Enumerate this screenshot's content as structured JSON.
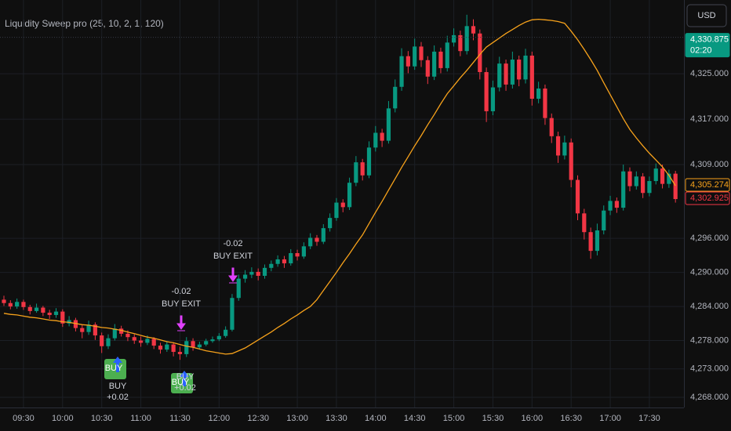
{
  "chart_data": {
    "type": "candlestick",
    "title": "Liquidity Sweep pro (25, 10, 2, 1, 120)",
    "currency": "USD",
    "up_color": "#089981",
    "down_color": "#f23645",
    "grid": true,
    "ylim": [
      4266.2,
      4338
    ],
    "yticks": [
      {
        "value": 4268,
        "label": "4,268.000"
      },
      {
        "value": 4273,
        "label": "4,273.000"
      },
      {
        "value": 4278,
        "label": "4,278.000"
      },
      {
        "value": 4284,
        "label": "4,284.000"
      },
      {
        "value": 4290,
        "label": "4,290.000"
      },
      {
        "value": 4296,
        "label": "4,296.000"
      },
      {
        "value": 4309,
        "label": "4,309.000"
      },
      {
        "value": 4317,
        "label": "4,317.000"
      },
      {
        "value": 4325,
        "label": "4,325.000"
      }
    ],
    "categories": [
      null,
      null,
      null,
      "09:30",
      null,
      null,
      null,
      null,
      null,
      "10:00",
      null,
      null,
      null,
      null,
      null,
      "10:30",
      null,
      null,
      null,
      null,
      null,
      "11:00",
      null,
      null,
      null,
      null,
      null,
      "11:30",
      null,
      null,
      null,
      null,
      null,
      "12:00",
      null,
      null,
      null,
      null,
      null,
      "12:30",
      null,
      null,
      null,
      null,
      null,
      "13:00",
      null,
      null,
      null,
      null,
      null,
      "13:30",
      null,
      null,
      null,
      null,
      null,
      "14:00",
      null,
      null,
      null,
      null,
      null,
      "14:30",
      null,
      null,
      null,
      null,
      null,
      "15:00",
      null,
      null,
      null,
      null,
      null,
      "15:30",
      null,
      null,
      null,
      null,
      null,
      "16:00",
      null,
      null,
      null,
      null,
      null,
      "16:30",
      null,
      null,
      null,
      null,
      null,
      "17:00",
      null,
      null,
      null,
      null,
      null,
      "17:30",
      null,
      null,
      null,
      null
    ],
    "open": [
      4285.2,
      4284.6,
      4284.0,
      4284.8,
      4283.9,
      4283.2,
      4283.8,
      4282.9,
      4282.5,
      4283.1,
      4281.0,
      4281.6,
      4280.2,
      4279.5,
      4280.8,
      4278.9,
      4277.0,
      4278.4,
      4280.1,
      4279.2,
      4278.6,
      4278.0,
      4277.6,
      4278.3,
      4277.1,
      4276.4,
      4277.3,
      4276.0,
      4275.6,
      4277.9,
      4276.8,
      4277.3,
      4277.9,
      4278.2,
      4278.8,
      4279.9,
      4285.5,
      4288.9,
      4289.6,
      4290.1,
      4289.4,
      4290.8,
      4291.5,
      4292.3,
      4291.6,
      4293.4,
      4292.8,
      4294.6,
      4296.1,
      4295.4,
      4297.8,
      4299.6,
      4302.3,
      4301.5,
      4305.8,
      4309.4,
      4307.1,
      4312.0,
      4314.6,
      4313.2,
      4318.9,
      4322.7,
      4328.1,
      4326.3,
      4329.8,
      4327.4,
      4324.5,
      4328.9,
      4326.0,
      4330.5,
      4331.8,
      4329.0,
      4333.4,
      4332.1,
      4325.3,
      4318.4,
      4322.6,
      4326.8,
      4323.1,
      4327.5,
      4324.0,
      4328.2,
      4320.6,
      4322.4,
      4317.2,
      4314.0,
      4310.6,
      4312.9,
      4306.3,
      4300.4,
      4297.1,
      4293.8,
      4297.4,
      4300.9,
      4302.6,
      4301.4,
      4307.8,
      4305.2,
      4306.9,
      4304.0,
      4306.1,
      4308.3,
      4305.6,
      4307.4
    ],
    "high": [
      4285.9,
      4285.1,
      4285.4,
      4285.2,
      4284.3,
      4284.5,
      4284.1,
      4283.4,
      4283.7,
      4283.5,
      4282.3,
      4282.0,
      4280.8,
      4281.5,
      4281.2,
      4279.4,
      4279.1,
      4280.9,
      4280.6,
      4279.8,
      4279.1,
      4278.7,
      4278.9,
      4278.6,
      4277.6,
      4277.9,
      4277.7,
      4276.9,
      4278.6,
      4278.4,
      4277.8,
      4278.3,
      4278.7,
      4279.3,
      4280.5,
      4286.2,
      4289.6,
      4290.4,
      4290.9,
      4290.7,
      4291.4,
      4292.1,
      4293.0,
      4292.9,
      4294.1,
      4294.0,
      4295.3,
      4296.9,
      4296.6,
      4298.5,
      4300.4,
      4303.1,
      4302.9,
      4306.7,
      4310.5,
      4310.0,
      4313.1,
      4315.8,
      4315.3,
      4320.2,
      4324.0,
      4329.5,
      4329.0,
      4331.2,
      4330.6,
      4328.1,
      4330.0,
      4329.6,
      4331.7,
      4333.0,
      4332.6,
      4335.4,
      4334.6,
      4332.8,
      4326.1,
      4323.8,
      4328.0,
      4327.5,
      4328.9,
      4328.2,
      4329.4,
      4328.9,
      4323.6,
      4323.1,
      4318.0,
      4314.8,
      4314.1,
      4313.6,
      4307.1,
      4301.2,
      4297.9,
      4298.6,
      4301.8,
      4303.5,
      4303.2,
      4309.0,
      4308.5,
      4307.8,
      4307.5,
      4306.9,
      4309.2,
      4309.0,
      4308.1,
      4307.9
    ],
    "low": [
      4284.1,
      4283.5,
      4283.6,
      4283.4,
      4282.6,
      4282.9,
      4282.3,
      4281.8,
      4282.0,
      4280.4,
      4280.5,
      4279.6,
      4278.4,
      4279.0,
      4278.1,
      4275.8,
      4276.5,
      4278.0,
      4278.7,
      4277.9,
      4277.4,
      4276.9,
      4277.2,
      4276.5,
      4275.7,
      4276.0,
      4275.2,
      4274.6,
      4275.1,
      4276.2,
      4276.4,
      4277.0,
      4277.6,
      4277.9,
      4278.5,
      4279.6,
      4285.0,
      4288.2,
      4289.0,
      4288.6,
      4288.9,
      4290.2,
      4291.0,
      4290.8,
      4291.2,
      4292.1,
      4292.4,
      4294.1,
      4294.7,
      4295.0,
      4297.2,
      4299.1,
      4300.6,
      4301.0,
      4305.2,
      4306.2,
      4306.6,
      4311.3,
      4312.1,
      4312.7,
      4318.2,
      4322.0,
      4325.1,
      4325.7,
      4326.2,
      4323.2,
      4323.9,
      4325.1,
      4325.4,
      4329.8,
      4328.1,
      4328.4,
      4330.9,
      4324.0,
      4316.5,
      4317.7,
      4321.9,
      4322.0,
      4322.4,
      4322.8,
      4323.3,
      4319.4,
      4319.8,
      4316.0,
      4312.8,
      4309.3,
      4309.9,
      4305.0,
      4299.2,
      4295.8,
      4292.4,
      4293.0,
      4296.7,
      4300.1,
      4300.5,
      4300.9,
      4304.3,
      4304.6,
      4303.1,
      4303.4,
      4305.5,
      4304.8,
      4304.9,
      4302.3
    ],
    "close": [
      4284.6,
      4284.0,
      4284.8,
      4283.9,
      4283.2,
      4283.8,
      4282.9,
      4282.5,
      4283.1,
      4281.0,
      4281.6,
      4280.2,
      4279.5,
      4280.8,
      4278.9,
      4277.0,
      4278.4,
      4280.1,
      4279.2,
      4278.6,
      4278.0,
      4277.6,
      4278.3,
      4277.1,
      4276.4,
      4277.3,
      4276.0,
      4275.6,
      4277.9,
      4276.8,
      4277.3,
      4277.9,
      4278.2,
      4278.8,
      4279.9,
      4285.5,
      4288.9,
      4289.6,
      4290.1,
      4289.4,
      4290.8,
      4291.5,
      4292.3,
      4291.6,
      4293.4,
      4292.8,
      4294.6,
      4296.1,
      4295.4,
      4297.8,
      4299.6,
      4302.3,
      4301.5,
      4305.8,
      4309.4,
      4307.1,
      4312.0,
      4314.6,
      4313.2,
      4318.9,
      4322.7,
      4328.1,
      4326.3,
      4329.8,
      4327.4,
      4324.5,
      4328.9,
      4326.0,
      4330.5,
      4331.8,
      4329.0,
      4333.4,
      4332.1,
      4325.3,
      4318.4,
      4322.6,
      4326.8,
      4323.1,
      4327.5,
      4324.0,
      4328.2,
      4320.6,
      4322.4,
      4317.2,
      4314.0,
      4310.6,
      4312.9,
      4306.3,
      4300.4,
      4297.1,
      4293.8,
      4297.4,
      4300.9,
      4302.6,
      4301.4,
      4307.8,
      4305.2,
      4306.9,
      4304.0,
      4306.1,
      4308.3,
      4305.6,
      4307.4,
      4302.925
    ],
    "ma": {
      "color": "#f7a21b",
      "values": [
        4282.8,
        4282.6,
        4282.5,
        4282.3,
        4282.1,
        4282.0,
        4281.8,
        4281.6,
        4281.5,
        4281.3,
        4281.2,
        4281.0,
        4280.8,
        4280.7,
        4280.5,
        4280.3,
        4280.2,
        4280.0,
        4279.8,
        4279.5,
        4279.2,
        4278.9,
        4278.6,
        4278.4,
        4278.1,
        4277.8,
        4277.6,
        4277.3,
        4277.0,
        4276.8,
        4276.5,
        4276.2,
        4276.0,
        4275.8,
        4275.6,
        4275.7,
        4276.2,
        4276.7,
        4277.4,
        4278.1,
        4278.8,
        4279.5,
        4280.3,
        4281.0,
        4281.8,
        4282.5,
        4283.3,
        4284.0,
        4285.2,
        4286.8,
        4288.4,
        4290.0,
        4291.7,
        4293.3,
        4295.0,
        4296.6,
        4298.6,
        4300.6,
        4302.5,
        4304.5,
        4306.5,
        4308.5,
        4310.4,
        4312.3,
        4314.1,
        4316.0,
        4317.8,
        4319.7,
        4321.5,
        4322.9,
        4324.3,
        4325.6,
        4327.0,
        4328.4,
        4329.7,
        4330.5,
        4331.3,
        4332.1,
        4332.8,
        4333.5,
        4334.1,
        4334.5,
        4334.6,
        4334.5,
        4334.4,
        4334.2,
        4333.9,
        4332.5,
        4331.0,
        4329.3,
        4327.5,
        4325.6,
        4323.4,
        4321.3,
        4319.2,
        4317.1,
        4315.2,
        4313.7,
        4312.3,
        4311.0,
        4309.8,
        4308.6,
        4307.1,
        4305.274
      ]
    },
    "price_labels": [
      {
        "value": 4330.875,
        "label": "4,330.875",
        "sub": "02:20",
        "color": "#089981"
      },
      {
        "value": 4305.274,
        "label": "4,305.274",
        "color": "#f7a21b"
      },
      {
        "value": 4302.925,
        "label": "4,302.925",
        "color": "#f23645"
      }
    ],
    "entries": [
      {
        "tag": "BUY",
        "text": "BUY",
        "qty": "+0.02"
      },
      {
        "tag": "BUY",
        "text": "BUY",
        "qty": "+0.02"
      }
    ],
    "exits": [
      {
        "qty": "-0.02",
        "text": "BUY EXIT"
      },
      {
        "qty": "-0.02",
        "text": "BUY EXIT"
      }
    ]
  }
}
